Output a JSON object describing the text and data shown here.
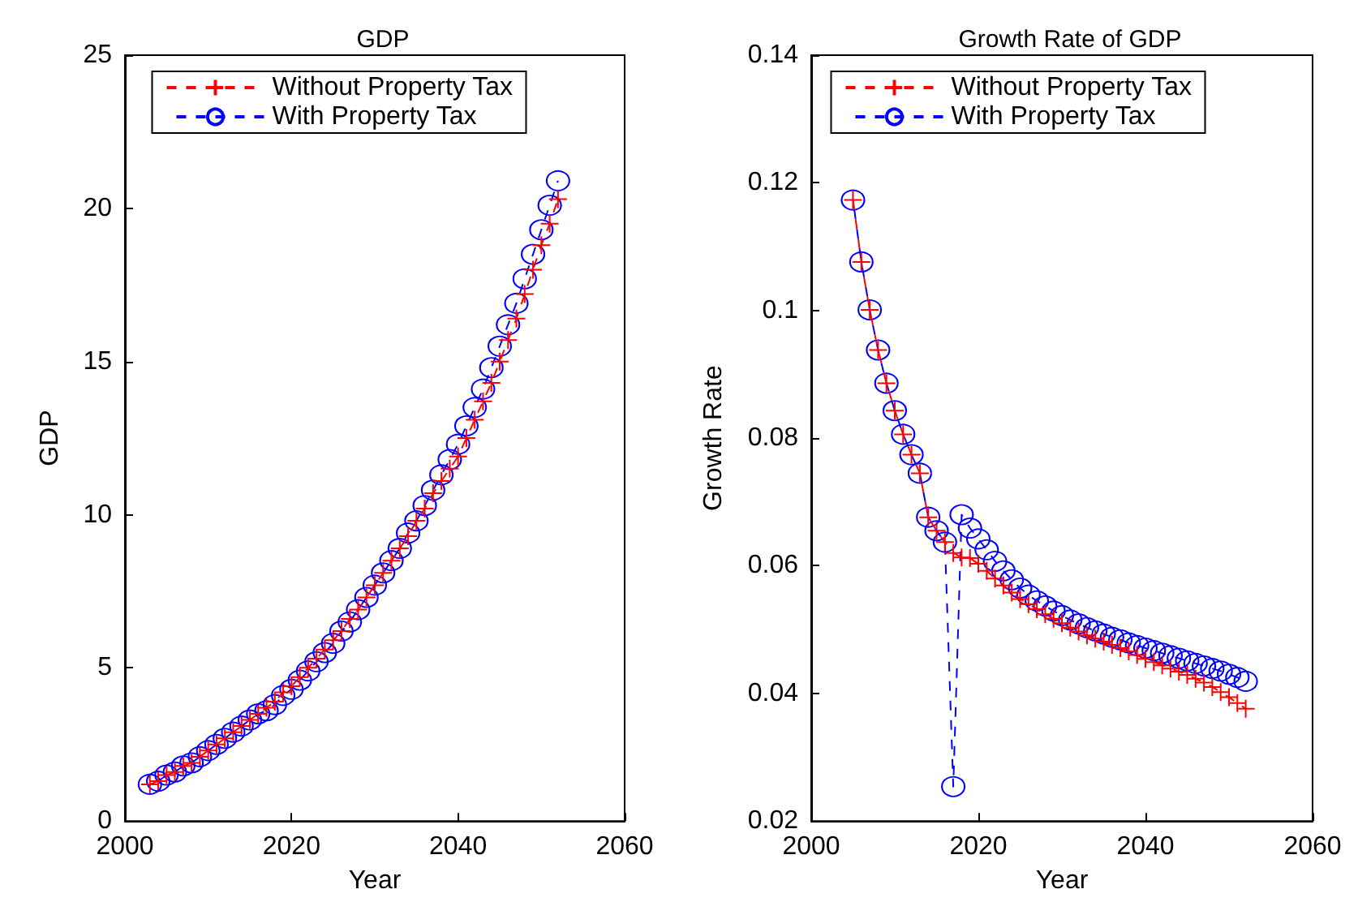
{
  "chart_data": [
    {
      "type": "line",
      "title": "GDP",
      "xlabel": "Year",
      "ylabel": "GDP",
      "xlim": [
        2000,
        2060
      ],
      "xticks": [
        2000,
        2020,
        2040,
        2060
      ],
      "ylim": [
        0,
        25
      ],
      "yticks": [
        0,
        5,
        10,
        15,
        20,
        25
      ],
      "legend": "top",
      "line_style": "dashed",
      "grid": false,
      "x": [
        2003,
        2004,
        2005,
        2006,
        2007,
        2008,
        2009,
        2010,
        2011,
        2012,
        2013,
        2014,
        2015,
        2016,
        2017,
        2018,
        2019,
        2020,
        2021,
        2022,
        2023,
        2024,
        2025,
        2026,
        2027,
        2028,
        2029,
        2030,
        2031,
        2032,
        2033,
        2034,
        2035,
        2036,
        2037,
        2038,
        2039,
        2040,
        2041,
        2042,
        2043,
        2044,
        2045,
        2046,
        2047,
        2048,
        2049,
        2050,
        2051,
        2052
      ],
      "series": [
        {
          "name": "Without Property Tax",
          "color": "#ff0000",
          "marker": "cross",
          "values": [
            1.2,
            1.3,
            1.5,
            1.6,
            1.8,
            1.9,
            2.1,
            2.3,
            2.5,
            2.7,
            2.9,
            3.1,
            3.3,
            3.5,
            3.7,
            3.9,
            4.2,
            4.4,
            4.7,
            5.0,
            5.3,
            5.6,
            5.9,
            6.2,
            6.6,
            6.9,
            7.3,
            7.7,
            8.1,
            8.5,
            8.9,
            9.3,
            9.8,
            10.2,
            10.7,
            11.1,
            11.5,
            11.9,
            12.5,
            13.1,
            13.7,
            14.3,
            15.0,
            15.7,
            16.4,
            17.2,
            18.0,
            18.8,
            19.5,
            20.3
          ]
        },
        {
          "name": "With Property Tax",
          "color": "#0000ff",
          "marker": "circle",
          "values": [
            1.2,
            1.3,
            1.5,
            1.6,
            1.8,
            1.9,
            2.1,
            2.3,
            2.5,
            2.7,
            2.9,
            3.1,
            3.3,
            3.5,
            3.6,
            3.8,
            4.1,
            4.3,
            4.6,
            4.9,
            5.2,
            5.5,
            5.8,
            6.2,
            6.5,
            6.9,
            7.3,
            7.7,
            8.1,
            8.5,
            8.9,
            9.4,
            9.8,
            10.3,
            10.8,
            11.3,
            11.8,
            12.3,
            12.9,
            13.5,
            14.1,
            14.8,
            15.5,
            16.2,
            16.9,
            17.7,
            18.5,
            19.3,
            20.1,
            20.9
          ]
        }
      ]
    },
    {
      "type": "line",
      "title": "Growth Rate of GDP",
      "xlabel": "Year",
      "ylabel": "Growth Rate",
      "xlim": [
        2000,
        2060
      ],
      "xticks": [
        2000,
        2020,
        2040,
        2060
      ],
      "ylim": [
        0.02,
        0.14
      ],
      "yticks": [
        0.02,
        0.04,
        0.06,
        0.08,
        0.1,
        0.12,
        0.14
      ],
      "legend": "top",
      "line_style": "dashed",
      "grid": false,
      "x": [
        2005,
        2006,
        2007,
        2008,
        2009,
        2010,
        2011,
        2012,
        2013,
        2014,
        2015,
        2016,
        2017,
        2018,
        2019,
        2020,
        2021,
        2022,
        2023,
        2024,
        2025,
        2026,
        2027,
        2028,
        2029,
        2030,
        2031,
        2032,
        2033,
        2034,
        2035,
        2036,
        2037,
        2038,
        2039,
        2040,
        2041,
        2042,
        2043,
        2044,
        2045,
        2046,
        2047,
        2048,
        2049,
        2050,
        2051,
        2052
      ],
      "series": [
        {
          "name": "Without Property Tax",
          "color": "#ff0000",
          "marker": "cross",
          "values": [
            0.1173,
            0.1076,
            0.1001,
            0.0938,
            0.0886,
            0.0843,
            0.0806,
            0.0774,
            0.0745,
            0.0676,
            0.0655,
            0.0637,
            0.062,
            0.0613,
            0.0612,
            0.0603,
            0.0592,
            0.058,
            0.0569,
            0.0558,
            0.0548,
            0.054,
            0.0532,
            0.0524,
            0.0517,
            0.051,
            0.0503,
            0.0497,
            0.0491,
            0.0486,
            0.0481,
            0.0476,
            0.0471,
            0.0466,
            0.046,
            0.0454,
            0.0449,
            0.0444,
            0.0439,
            0.0434,
            0.0429,
            0.0423,
            0.0417,
            0.041,
            0.0402,
            0.0394,
            0.0385,
            0.0376
          ]
        },
        {
          "name": "With Property Tax",
          "color": "#0000ff",
          "marker": "circle",
          "values": [
            0.1173,
            0.1076,
            0.1001,
            0.0938,
            0.0886,
            0.0843,
            0.0806,
            0.0774,
            0.0745,
            0.0676,
            0.0655,
            0.0637,
            0.0254,
            0.068,
            0.0659,
            0.0642,
            0.0625,
            0.0607,
            0.0592,
            0.0578,
            0.0565,
            0.0554,
            0.0545,
            0.0537,
            0.0529,
            0.0522,
            0.0515,
            0.0509,
            0.0503,
            0.0498,
            0.0493,
            0.0488,
            0.0484,
            0.0479,
            0.0475,
            0.0471,
            0.0467,
            0.0463,
            0.0459,
            0.0455,
            0.0451,
            0.0447,
            0.0443,
            0.0439,
            0.0435,
            0.043,
            0.0425,
            0.0419
          ]
        }
      ]
    }
  ]
}
